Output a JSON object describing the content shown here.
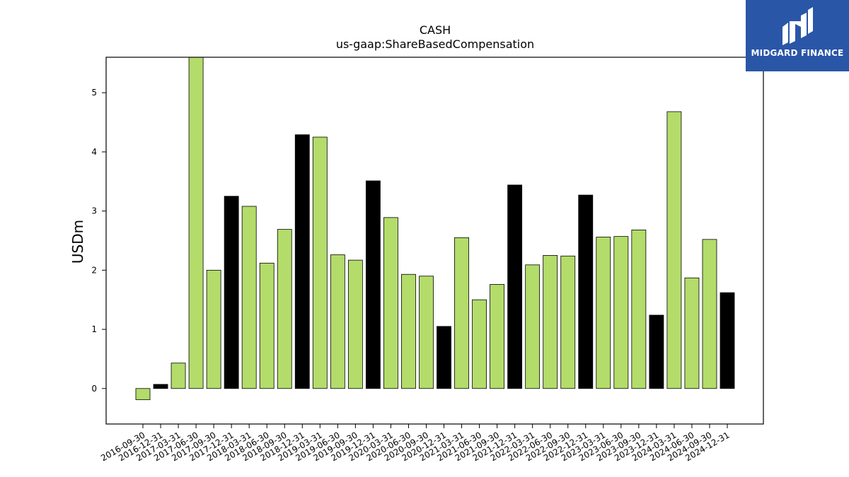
{
  "chart_data": {
    "type": "bar",
    "title": "CASH",
    "subtitle": "us-gaap:ShareBasedCompensation",
    "xlabel": "",
    "ylabel": "USDm",
    "ylim": [
      -0.6,
      5.6
    ],
    "yticks": [
      0,
      1,
      2,
      3,
      4,
      5
    ],
    "grid": false,
    "categories": [
      "2016-09-30",
      "2016-12-31",
      "2017-03-31",
      "2017-06-30",
      "2017-09-30",
      "2017-12-31",
      "2018-03-31",
      "2018-06-30",
      "2018-09-30",
      "2018-12-31",
      "2019-03-31",
      "2019-06-30",
      "2019-09-30",
      "2019-12-31",
      "2020-03-31",
      "2020-06-30",
      "2020-09-30",
      "2020-12-31",
      "2021-03-31",
      "2021-06-30",
      "2021-09-30",
      "2021-12-31",
      "2022-03-31",
      "2022-06-30",
      "2022-09-30",
      "2022-12-31",
      "2023-03-31",
      "2023-06-30",
      "2023-09-30",
      "2023-12-31",
      "2024-03-31",
      "2024-06-30",
      "2024-09-30",
      "2024-12-31"
    ],
    "values": [
      -0.19,
      0.07,
      0.43,
      5.6,
      2.0,
      3.25,
      3.08,
      2.12,
      2.69,
      4.29,
      4.25,
      2.26,
      2.17,
      3.51,
      2.89,
      1.93,
      1.9,
      1.05,
      2.55,
      1.5,
      1.76,
      3.44,
      2.09,
      2.25,
      2.24,
      3.27,
      2.56,
      2.57,
      2.68,
      1.24,
      4.68,
      1.87,
      2.52,
      1.62
    ],
    "bar_colors": [
      "#b3dc6b",
      "#000000",
      "#b3dc6b",
      "#b3dc6b",
      "#b3dc6b",
      "#000000",
      "#b3dc6b",
      "#b3dc6b",
      "#b3dc6b",
      "#000000",
      "#b3dc6b",
      "#b3dc6b",
      "#b3dc6b",
      "#000000",
      "#b3dc6b",
      "#b3dc6b",
      "#b3dc6b",
      "#000000",
      "#b3dc6b",
      "#b3dc6b",
      "#b3dc6b",
      "#000000",
      "#b3dc6b",
      "#b3dc6b",
      "#b3dc6b",
      "#000000",
      "#b3dc6b",
      "#b3dc6b",
      "#b3dc6b",
      "#000000",
      "#b3dc6b",
      "#b3dc6b",
      "#b3dc6b",
      "#000000"
    ]
  },
  "logo": {
    "text": "MIDGARD FINANCE",
    "background": "#2a56a8"
  }
}
